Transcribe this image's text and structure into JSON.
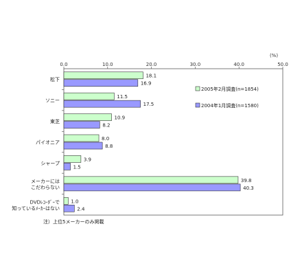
{
  "chart_data": {
    "type": "bar",
    "orientation": "horizontal",
    "unit_label": "(%)",
    "xlim": [
      0,
      50
    ],
    "xticks": [
      "0.0",
      "10.0",
      "20.0",
      "30.0",
      "40.0",
      "50.0"
    ],
    "grid": false,
    "categories": [
      [
        "松下"
      ],
      [
        "ソニー"
      ],
      [
        "東芝"
      ],
      [
        "パイオニア"
      ],
      [
        "シャープ"
      ],
      [
        "メーカーには",
        "こだわらない"
      ],
      [
        "DVDﾚｺｰﾀﾞｰで",
        "知っているﾒｰｶｰはない"
      ]
    ],
    "series": [
      {
        "name": "2005年2月調査(n=1854)",
        "values": [
          18.1,
          11.5,
          10.9,
          8.0,
          3.9,
          39.8,
          1.0
        ],
        "value_labels": [
          "18.1",
          "11.5",
          "10.9",
          "8.0",
          "3.9",
          "39.8",
          "1.0"
        ],
        "color": "#ccffcc"
      },
      {
        "name": "2004年1月調査(n=1580)",
        "values": [
          16.9,
          17.5,
          8.2,
          8.8,
          1.5,
          40.3,
          2.4
        ],
        "value_labels": [
          "16.9",
          "17.5",
          "8.2",
          "8.8",
          "1.5",
          "40.3",
          "2.4"
        ],
        "color": "#9999ff"
      }
    ],
    "legend_position": "right"
  },
  "note": "注）上位5メーカーのみ掲載"
}
